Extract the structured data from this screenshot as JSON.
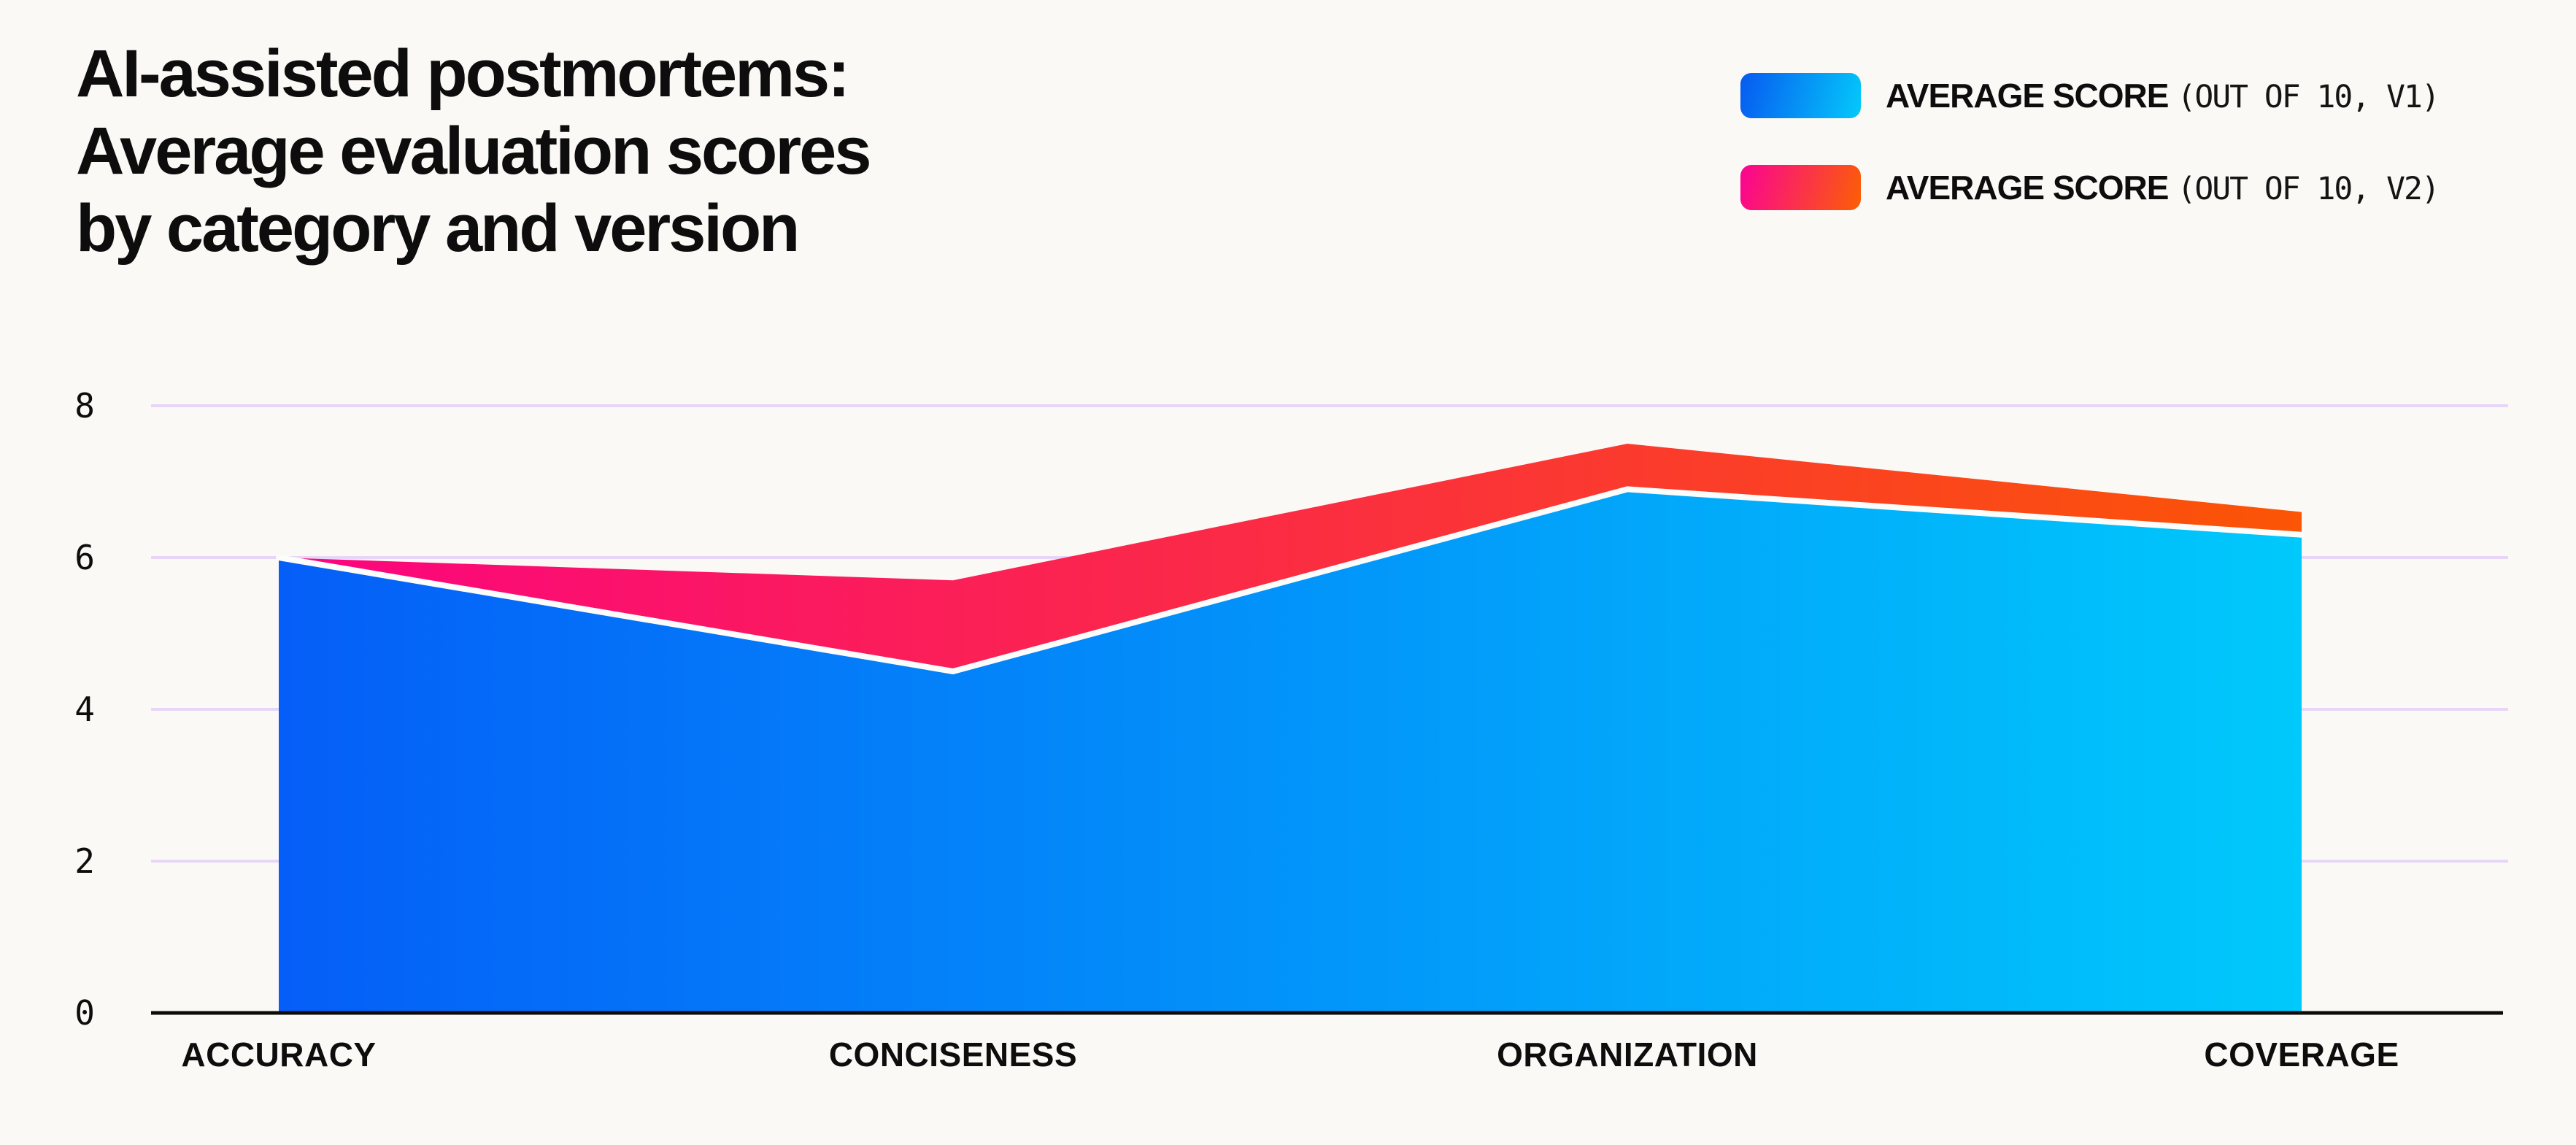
{
  "title": "AI-assisted postmortems:\nAverage evaluation scores\nby category and version",
  "legend": {
    "items": [
      {
        "label_bold": "AVERAGE SCORE",
        "label_mono": "(OUT OF 10, V1)",
        "gradient": [
          "#075af0",
          "#04c9fa"
        ]
      },
      {
        "label_bold": "AVERAGE SCORE",
        "label_mono": "(OUT OF 10, V2)",
        "gradient": [
          "#fb0393",
          "#fb5f04"
        ]
      }
    ]
  },
  "chart_data": {
    "type": "area",
    "title": "AI-assisted postmortems: Average evaluation scores by category and version",
    "categories": [
      "ACCURACY",
      "CONCISENESS",
      "ORGANIZATION",
      "COVERAGE"
    ],
    "series": [
      {
        "name": "Average score (out of 10, V1)",
        "values": [
          6.0,
          4.5,
          6.9,
          6.3
        ],
        "gradient": [
          "#055ef8",
          "#00c9fb"
        ]
      },
      {
        "name": "Average score (out of 10, V2)",
        "values": [
          6.0,
          5.7,
          7.5,
          6.6
        ],
        "gradient": [
          "#fb0480",
          "#fb5505"
        ]
      }
    ],
    "yticks": [
      0,
      2,
      4,
      6,
      8
    ],
    "ylim": [
      0,
      8.5
    ],
    "grid": true,
    "legend_position": "top-right",
    "colors": {
      "background": "#faf9f6",
      "gridline": "#e7d6f7",
      "axis": "#0b0b0b",
      "separator": "#fcfcfb",
      "text": "#0d0d0d"
    }
  }
}
